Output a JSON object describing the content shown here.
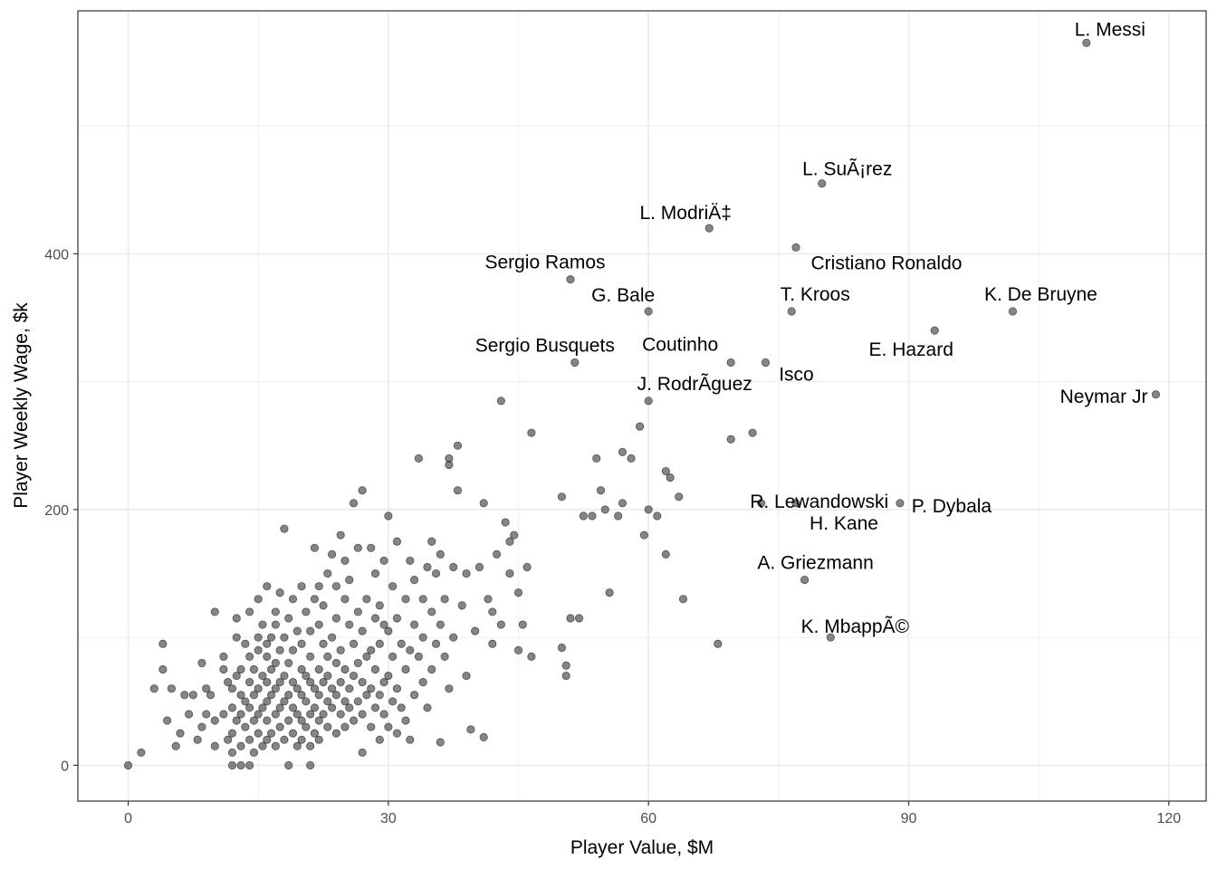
{
  "chart_data": {
    "type": "scatter",
    "title": "",
    "xlabel": "Player Value, $M",
    "ylabel": "Player Weekly Wage, $k",
    "xlim": [
      -5.8,
      124.3
    ],
    "ylim": [
      -28,
      590
    ],
    "x_ticks": [
      0,
      30,
      60,
      90,
      120
    ],
    "y_ticks": [
      0,
      200,
      400
    ],
    "x_tick_labels": [
      "0",
      "30",
      "60",
      "90",
      "120"
    ],
    "y_tick_labels": [
      "0",
      "200",
      "400"
    ],
    "grid": true,
    "theme": "bw",
    "point_color": "#333333",
    "point_alpha": 0.6,
    "labeled_points": [
      {
        "label": "L. Messi",
        "x": 110.5,
        "y": 565
      },
      {
        "label": "L. SuÃ¡rez",
        "x": 80.0,
        "y": 455
      },
      {
        "label": "L. ModriÄ‡",
        "x": 67.0,
        "y": 420
      },
      {
        "label": "Cristiano Ronaldo",
        "x": 77.0,
        "y": 405
      },
      {
        "label": "Sergio Ramos",
        "x": 51.0,
        "y": 380
      },
      {
        "label": "G. Bale",
        "x": 60.0,
        "y": 355
      },
      {
        "label": "T. Kroos",
        "x": 76.5,
        "y": 355
      },
      {
        "label": "K. De Bruyne",
        "x": 102.0,
        "y": 355
      },
      {
        "label": "E. Hazard",
        "x": 93.0,
        "y": 340
      },
      {
        "label": "Coutinho",
        "x": 69.5,
        "y": 315
      },
      {
        "label": "Sergio Busquets",
        "x": 51.5,
        "y": 315
      },
      {
        "label": "Isco",
        "x": 73.5,
        "y": 315
      },
      {
        "label": "J. RodrÃ­guez",
        "x": 60.0,
        "y": 285
      },
      {
        "label": "Neymar Jr",
        "x": 118.5,
        "y": 290
      },
      {
        "label": "R. Lewandowski",
        "x": 73.0,
        "y": 205
      },
      {
        "label": "H. Kane",
        "x": 77.0,
        "y": 205
      },
      {
        "label": "P. Dybala",
        "x": 89.0,
        "y": 205
      },
      {
        "label": "A. Griezmann",
        "x": 78.0,
        "y": 145
      },
      {
        "label": "K. MbappÃ©",
        "x": 81.0,
        "y": 100
      }
    ],
    "other_points": [
      [
        0,
        0
      ],
      [
        1.5,
        10
      ],
      [
        3,
        60
      ],
      [
        4,
        75
      ],
      [
        4,
        95
      ],
      [
        4.5,
        35
      ],
      [
        5,
        60
      ],
      [
        5.5,
        15
      ],
      [
        6,
        25
      ],
      [
        6.5,
        55
      ],
      [
        7,
        40
      ],
      [
        7.5,
        55
      ],
      [
        8,
        20
      ],
      [
        8.5,
        30
      ],
      [
        8.5,
        80
      ],
      [
        9,
        60
      ],
      [
        9,
        40
      ],
      [
        9.5,
        55
      ],
      [
        10,
        15
      ],
      [
        10,
        35
      ],
      [
        10,
        120
      ],
      [
        11,
        75
      ],
      [
        11,
        40
      ],
      [
        11,
        85
      ],
      [
        11.5,
        65
      ],
      [
        11.5,
        20
      ],
      [
        12,
        0
      ],
      [
        12,
        10
      ],
      [
        12,
        25
      ],
      [
        12,
        45
      ],
      [
        12,
        60
      ],
      [
        12.5,
        35
      ],
      [
        12.5,
        70
      ],
      [
        12.5,
        100
      ],
      [
        12.5,
        115
      ],
      [
        13,
        0
      ],
      [
        13,
        15
      ],
      [
        13,
        40
      ],
      [
        13,
        55
      ],
      [
        13,
        75
      ],
      [
        13.5,
        30
      ],
      [
        13.5,
        50
      ],
      [
        13.5,
        95
      ],
      [
        14,
        0
      ],
      [
        14,
        20
      ],
      [
        14,
        45
      ],
      [
        14,
        65
      ],
      [
        14,
        85
      ],
      [
        14,
        120
      ],
      [
        14.5,
        10
      ],
      [
        14.5,
        35
      ],
      [
        14.5,
        55
      ],
      [
        14.5,
        75
      ],
      [
        15,
        25
      ],
      [
        15,
        40
      ],
      [
        15,
        60
      ],
      [
        15,
        90
      ],
      [
        15,
        100
      ],
      [
        15,
        130
      ],
      [
        15.5,
        15
      ],
      [
        15.5,
        45
      ],
      [
        15.5,
        70
      ],
      [
        15.5,
        110
      ],
      [
        16,
        20
      ],
      [
        16,
        35
      ],
      [
        16,
        50
      ],
      [
        16,
        65
      ],
      [
        16,
        85
      ],
      [
        16,
        95
      ],
      [
        16,
        140
      ],
      [
        16.5,
        25
      ],
      [
        16.5,
        55
      ],
      [
        16.5,
        75
      ],
      [
        16.5,
        100
      ],
      [
        17,
        15
      ],
      [
        17,
        40
      ],
      [
        17,
        60
      ],
      [
        17,
        80
      ],
      [
        17,
        110
      ],
      [
        17,
        120
      ],
      [
        17.5,
        30
      ],
      [
        17.5,
        45
      ],
      [
        17.5,
        65
      ],
      [
        17.5,
        90
      ],
      [
        17.5,
        135
      ],
      [
        18,
        20
      ],
      [
        18,
        50
      ],
      [
        18,
        70
      ],
      [
        18,
        100
      ],
      [
        18,
        185
      ],
      [
        18.5,
        0
      ],
      [
        18.5,
        35
      ],
      [
        18.5,
        55
      ],
      [
        18.5,
        80
      ],
      [
        18.5,
        115
      ],
      [
        19,
        25
      ],
      [
        19,
        45
      ],
      [
        19,
        65
      ],
      [
        19,
        90
      ],
      [
        19,
        130
      ],
      [
        19.5,
        15
      ],
      [
        19.5,
        40
      ],
      [
        19.5,
        60
      ],
      [
        19.5,
        105
      ],
      [
        20,
        20
      ],
      [
        20,
        35
      ],
      [
        20,
        55
      ],
      [
        20,
        75
      ],
      [
        20,
        95
      ],
      [
        20,
        140
      ],
      [
        20.5,
        30
      ],
      [
        20.5,
        50
      ],
      [
        20.5,
        70
      ],
      [
        20.5,
        120
      ],
      [
        21,
        0
      ],
      [
        21,
        15
      ],
      [
        21,
        40
      ],
      [
        21,
        65
      ],
      [
        21,
        85
      ],
      [
        21,
        105
      ],
      [
        21.5,
        25
      ],
      [
        21.5,
        45
      ],
      [
        21.5,
        60
      ],
      [
        21.5,
        130
      ],
      [
        21.5,
        170
      ],
      [
        22,
        20
      ],
      [
        22,
        35
      ],
      [
        22,
        55
      ],
      [
        22,
        75
      ],
      [
        22,
        110
      ],
      [
        22,
        140
      ],
      [
        22.5,
        40
      ],
      [
        22.5,
        65
      ],
      [
        22.5,
        95
      ],
      [
        22.5,
        125
      ],
      [
        23,
        30
      ],
      [
        23,
        50
      ],
      [
        23,
        70
      ],
      [
        23,
        85
      ],
      [
        23,
        150
      ],
      [
        23.5,
        45
      ],
      [
        23.5,
        60
      ],
      [
        23.5,
        100
      ],
      [
        23.5,
        165
      ],
      [
        24,
        25
      ],
      [
        24,
        55
      ],
      [
        24,
        80
      ],
      [
        24,
        115
      ],
      [
        24,
        140
      ],
      [
        24.5,
        40
      ],
      [
        24.5,
        65
      ],
      [
        24.5,
        90
      ],
      [
        24.5,
        180
      ],
      [
        25,
        30
      ],
      [
        25,
        50
      ],
      [
        25,
        75
      ],
      [
        25,
        130
      ],
      [
        25,
        160
      ],
      [
        25.5,
        45
      ],
      [
        25.5,
        60
      ],
      [
        25.5,
        110
      ],
      [
        25.5,
        145
      ],
      [
        26,
        35
      ],
      [
        26,
        70
      ],
      [
        26,
        95
      ],
      [
        26,
        205
      ],
      [
        26.5,
        50
      ],
      [
        26.5,
        80
      ],
      [
        26.5,
        120
      ],
      [
        26.5,
        170
      ],
      [
        27,
        10
      ],
      [
        27,
        40
      ],
      [
        27,
        65
      ],
      [
        27,
        105
      ],
      [
        27,
        215
      ],
      [
        27.5,
        55
      ],
      [
        27.5,
        85
      ],
      [
        27.5,
        130
      ],
      [
        28,
        30
      ],
      [
        28,
        60
      ],
      [
        28,
        90
      ],
      [
        28,
        170
      ],
      [
        28.5,
        45
      ],
      [
        28.5,
        75
      ],
      [
        28.5,
        115
      ],
      [
        28.5,
        150
      ],
      [
        29,
        20
      ],
      [
        29,
        55
      ],
      [
        29,
        95
      ],
      [
        29,
        125
      ],
      [
        29.5,
        40
      ],
      [
        29.5,
        65
      ],
      [
        29.5,
        110
      ],
      [
        29.5,
        160
      ],
      [
        30,
        30
      ],
      [
        30,
        70
      ],
      [
        30,
        105
      ],
      [
        30,
        195
      ],
      [
        30.5,
        50
      ],
      [
        30.5,
        85
      ],
      [
        30.5,
        140
      ],
      [
        31,
        25
      ],
      [
        31,
        60
      ],
      [
        31,
        115
      ],
      [
        31,
        175
      ],
      [
        31.5,
        45
      ],
      [
        31.5,
        95
      ],
      [
        32,
        35
      ],
      [
        32,
        75
      ],
      [
        32,
        130
      ],
      [
        32.5,
        20
      ],
      [
        32.5,
        90
      ],
      [
        32.5,
        160
      ],
      [
        33,
        55
      ],
      [
        33,
        110
      ],
      [
        33,
        145
      ],
      [
        33.5,
        85
      ],
      [
        33.5,
        240
      ],
      [
        34,
        65
      ],
      [
        34,
        100
      ],
      [
        34,
        130
      ],
      [
        34.5,
        45
      ],
      [
        34.5,
        155
      ],
      [
        35,
        75
      ],
      [
        35,
        120
      ],
      [
        35,
        175
      ],
      [
        35.5,
        95
      ],
      [
        35.5,
        150
      ],
      [
        36,
        18
      ],
      [
        36,
        110
      ],
      [
        36,
        165
      ],
      [
        36.5,
        85
      ],
      [
        36.5,
        130
      ],
      [
        37,
        60
      ],
      [
        37,
        235
      ],
      [
        37,
        240
      ],
      [
        37.5,
        100
      ],
      [
        37.5,
        155
      ],
      [
        38,
        215
      ],
      [
        38,
        250
      ],
      [
        38.5,
        125
      ],
      [
        39,
        70
      ],
      [
        39,
        150
      ],
      [
        39.5,
        28
      ],
      [
        40,
        105
      ],
      [
        40.5,
        155
      ],
      [
        41,
        22
      ],
      [
        41,
        205
      ],
      [
        41.5,
        130
      ],
      [
        42,
        95
      ],
      [
        42,
        120
      ],
      [
        42.5,
        165
      ],
      [
        43,
        110
      ],
      [
        43,
        285
      ],
      [
        43.5,
        190
      ],
      [
        44,
        150
      ],
      [
        44,
        175
      ],
      [
        44.5,
        180
      ],
      [
        45,
        90
      ],
      [
        45,
        135
      ],
      [
        45.5,
        110
      ],
      [
        46,
        155
      ],
      [
        46.5,
        85
      ],
      [
        46.5,
        260
      ],
      [
        50,
        92
      ],
      [
        50,
        210
      ],
      [
        50.5,
        70
      ],
      [
        50.5,
        78
      ],
      [
        51,
        115
      ],
      [
        52,
        115
      ],
      [
        52.5,
        195
      ],
      [
        53.5,
        195
      ],
      [
        54,
        240
      ],
      [
        54.5,
        215
      ],
      [
        55,
        200
      ],
      [
        55.5,
        135
      ],
      [
        56.5,
        195
      ],
      [
        57,
        205
      ],
      [
        57,
        245
      ],
      [
        58,
        240
      ],
      [
        59,
        265
      ],
      [
        59.5,
        180
      ],
      [
        60,
        200
      ],
      [
        61,
        195
      ],
      [
        62,
        165
      ],
      [
        62,
        230
      ],
      [
        62.5,
        225
      ],
      [
        63.5,
        210
      ],
      [
        64,
        130
      ],
      [
        68,
        95
      ],
      [
        69.5,
        255
      ],
      [
        72,
        260
      ]
    ]
  }
}
